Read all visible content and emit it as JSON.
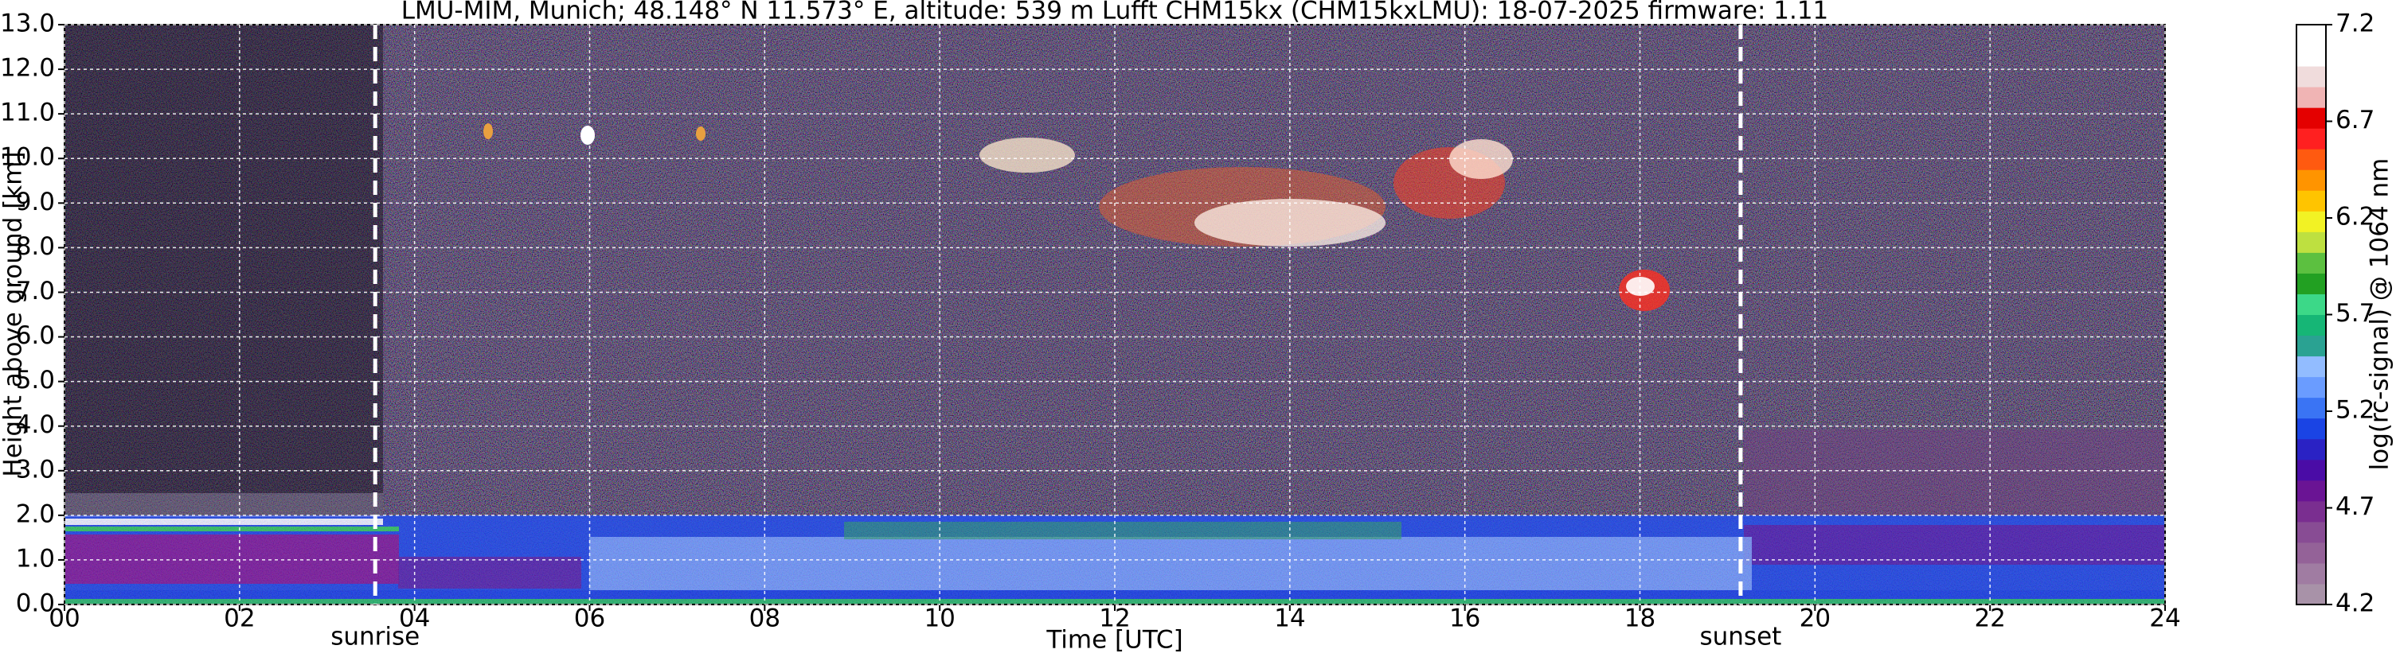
{
  "chart_data": {
    "type": "heatmap",
    "title": "LMU-MIM, Munich; 48.148° N 11.573° E, altitude: 539 m    Lufft CHM15kx (CHM15kxLMU): 18-07-2025    firmware: 1.11",
    "x_label": "Time [UTC]",
    "y_label": "Height above ground [km]",
    "xlim": [
      0,
      24
    ],
    "xticks": [
      {
        "value": 0,
        "label": "00"
      },
      {
        "value": 2,
        "label": "02"
      },
      {
        "value": 4,
        "label": "04"
      },
      {
        "value": 6,
        "label": "06"
      },
      {
        "value": 8,
        "label": "08"
      },
      10,
      12,
      14,
      16,
      18,
      20,
      22,
      24
    ],
    "ylim": [
      0,
      13
    ],
    "yticks": [
      {
        "value": 0,
        "label": "0.0"
      },
      {
        "value": 1,
        "label": "1.0"
      },
      {
        "value": 2,
        "label": "2.0"
      },
      {
        "value": 3,
        "label": "3.0"
      },
      {
        "value": 4,
        "label": "4.0"
      },
      {
        "value": 5,
        "label": "5.0"
      },
      {
        "value": 6,
        "label": "6.0"
      },
      {
        "value": 7,
        "label": "7.0"
      },
      {
        "value": 8,
        "label": "8.0"
      },
      {
        "value": 9,
        "label": "9.0"
      },
      {
        "value": 10,
        "label": "10.0"
      },
      {
        "value": 11,
        "label": "11.0"
      },
      {
        "value": 12,
        "label": "12.0"
      },
      {
        "value": 13,
        "label": "13.0"
      }
    ],
    "grid": true,
    "annotations": [
      {
        "text": "sunrise",
        "x": 3.55
      },
      {
        "text": "sunset",
        "x": 19.15
      }
    ],
    "colorbar": {
      "label": "log(rc-signal) @ 1064 nm",
      "lim": [
        4.2,
        7.2
      ],
      "ticks": [
        4.2,
        4.7,
        5.2,
        5.7,
        6.2,
        6.7,
        7.2
      ],
      "colors": [
        "#a892a8",
        "#a07ca2",
        "#946298",
        "#884c94",
        "#7a2e90",
        "#6a1494",
        "#4a0ca6",
        "#2a22c4",
        "#1a44e4",
        "#3a74f4",
        "#6a9cff",
        "#92bcff",
        "#2aa292",
        "#16b676",
        "#3cd888",
        "#22a022",
        "#5cc040",
        "#bee040",
        "#f2f224",
        "#ffc400",
        "#ff9400",
        "#ff5a10",
        "#ff2020",
        "#e40000",
        "#f0b4b4",
        "#f0dcdc",
        "#ffffff",
        "#ffffff"
      ]
    }
  }
}
